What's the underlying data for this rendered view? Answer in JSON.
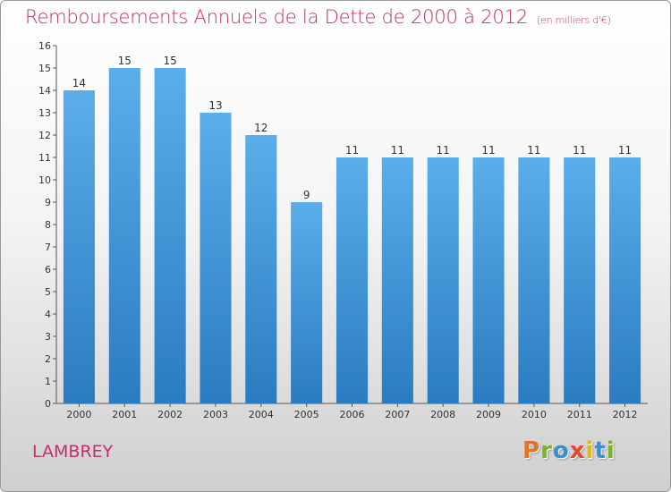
{
  "title": "Remboursements Annuels de la Dette de 2000 à 2012",
  "unit_note": "(en milliers d'€)",
  "commune": "LAMBREY",
  "logo": {
    "letters": [
      "P",
      "r",
      "o",
      "x",
      "i",
      "t",
      "i"
    ],
    "colors": [
      "#e0732a",
      "#7ab32e",
      "#3a8fd0",
      "#e04a2c",
      "#e8b419",
      "#3a8fd0",
      "#7ab32e"
    ]
  },
  "colors": {
    "bar": "#3a93d8",
    "title": "#c0306a"
  },
  "chart_data": {
    "type": "bar",
    "title": "Remboursements Annuels de la Dette de 2000 à 2012",
    "categories": [
      "2000",
      "2001",
      "2002",
      "2003",
      "2004",
      "2005",
      "2006",
      "2007",
      "2008",
      "2009",
      "2010",
      "2011",
      "2012"
    ],
    "values": [
      14,
      15,
      15,
      13,
      12,
      9,
      11,
      11,
      11,
      11,
      11,
      11,
      11
    ],
    "data_labels": [
      "14",
      "15",
      "15",
      "13",
      "12",
      "9",
      "11",
      "11",
      "11",
      "11",
      "11",
      "11",
      "11"
    ],
    "xlabel": "",
    "ylabel": "",
    "ylim": [
      0,
      16
    ],
    "yticks": [
      "0",
      "1",
      "2",
      "3",
      "4",
      "5",
      "6",
      "7",
      "8",
      "9",
      "10",
      "11",
      "12",
      "13",
      "14",
      "15",
      "16"
    ],
    "grid": false
  }
}
